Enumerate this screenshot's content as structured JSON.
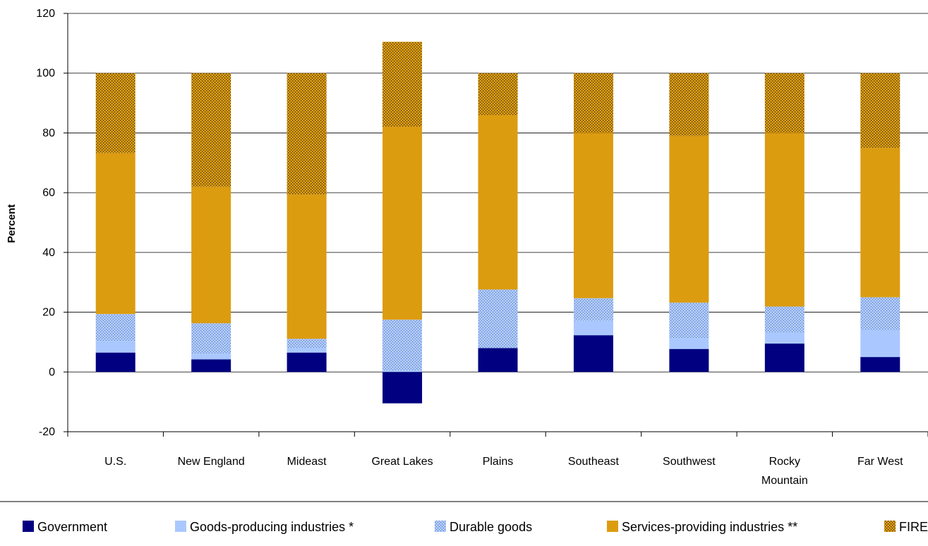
{
  "chart_data": {
    "type": "bar",
    "stacked": true,
    "title": "",
    "xlabel": "",
    "ylabel": "Percent",
    "ylim": [
      -20,
      120
    ],
    "yticks": [
      -20,
      0,
      20,
      40,
      60,
      80,
      100,
      120
    ],
    "grid": true,
    "legend_position": "bottom",
    "categories": [
      "U.S.",
      "New England",
      "Mideast",
      "Great Lakes",
      "Plains",
      "Southeast",
      "Southwest",
      "Rocky Mountain",
      "Far West"
    ],
    "category_lines": [
      [
        "U.S."
      ],
      [
        "New England"
      ],
      [
        "Mideast"
      ],
      [
        "Great Lakes"
      ],
      [
        "Plains"
      ],
      [
        "Southeast"
      ],
      [
        "Southwest"
      ],
      [
        "Rocky",
        "Mountain"
      ],
      [
        "Far West"
      ]
    ],
    "series": [
      {
        "name": "Government",
        "color": "#000080",
        "pattern": "solid",
        "values": [
          6.5,
          4.2,
          6.5,
          -10.5,
          8.0,
          12.3,
          7.7,
          9.5,
          5.0
        ]
      },
      {
        "name": "Goods-producing industries *",
        "color": "#aac8ff",
        "pattern": "solid",
        "values": [
          3.8,
          1.8,
          1.6,
          0.5,
          0.0,
          4.9,
          3.6,
          3.8,
          8.9
        ]
      },
      {
        "name": "Durable goods",
        "color": "#aac8ff",
        "pattern": "dots",
        "values": [
          9.1,
          10.3,
          3.0,
          17.0,
          19.6,
          7.5,
          11.9,
          8.6,
          11.1
        ]
      },
      {
        "name": "Services-providing industries **",
        "color": "#dc9c10",
        "pattern": "solid",
        "values": [
          53.9,
          45.7,
          48.2,
          64.5,
          58.4,
          55.3,
          55.8,
          58.1,
          50.0
        ]
      },
      {
        "name": "FIRE",
        "color": "#dc9c10",
        "pattern": "dots",
        "values": [
          26.7,
          38.0,
          40.7,
          28.5,
          14.0,
          20.0,
          21.0,
          20.0,
          25.0
        ]
      }
    ]
  },
  "legend": {
    "labels": [
      "Government",
      "Goods-producing industries *",
      "Durable goods",
      "Services-providing industries **",
      "FIRE"
    ]
  }
}
